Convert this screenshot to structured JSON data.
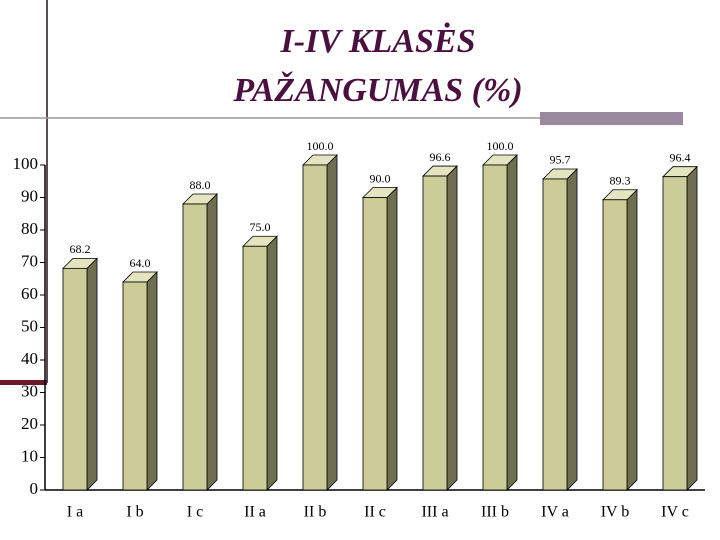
{
  "chart_data": {
    "type": "bar3d",
    "title": [
      "I-IV KLASĖS",
      "PAŽANGUMAS (%)"
    ],
    "categories": [
      "I a",
      "I b",
      "I c",
      "II a",
      "II b",
      "II c",
      "III a",
      "III b",
      "IV a",
      "IV b",
      "IV c"
    ],
    "values": [
      68.2,
      64.0,
      88.0,
      75.0,
      100.0,
      90.0,
      96.6,
      100.0,
      95.7,
      89.3,
      96.4
    ],
    "value_labels": [
      "68.2",
      "64.0",
      "88.0",
      "75.0",
      "100.0",
      "90.0",
      "96.6",
      "100.0",
      "95.7",
      "89.3",
      "96.4"
    ],
    "color": "#cccc99",
    "ylim": [
      0,
      100
    ],
    "yticks": [
      0,
      10,
      20,
      30,
      40,
      50,
      60,
      70,
      80,
      90,
      100
    ]
  }
}
